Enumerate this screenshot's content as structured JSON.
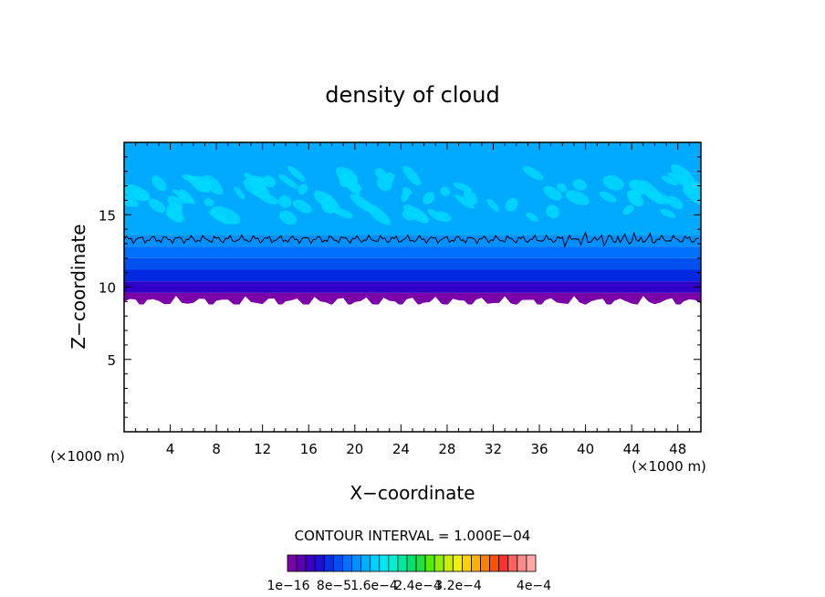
{
  "chart_data": {
    "type": "heatmap",
    "title": "density of cloud",
    "xlabel": "X−coordinate",
    "ylabel": "Z−coordinate",
    "x_unit_left": "(×1000 m)",
    "x_unit_right": "(×1000 m)",
    "xlim": [
      0,
      50
    ],
    "ylim": [
      0,
      20
    ],
    "x_ticks": [
      4,
      8,
      12,
      16,
      20,
      24,
      28,
      32,
      36,
      40,
      44,
      48
    ],
    "y_ticks": [
      5,
      10,
      15
    ],
    "contour_interval_label": "CONTOUR INTERVAL = 1.000E−04",
    "colorbar_labels": [
      "1e−16",
      "8e−5",
      "1.6e−4",
      "2.4e−4",
      "3.2e−4",
      "4e−4"
    ],
    "colorbar_colors": [
      "#7a00a8",
      "#5a00b0",
      "#3a00c0",
      "#1e10d0",
      "#0a30e0",
      "#0050f0",
      "#0070ff",
      "#0090ff",
      "#00b0ff",
      "#00d0ff",
      "#00e8f0",
      "#00f0d0",
      "#00e8a0",
      "#00e070",
      "#20e040",
      "#50f000",
      "#90f000",
      "#c8f000",
      "#f0f000",
      "#ffd000",
      "#ffb000",
      "#ff8000",
      "#ff5000",
      "#ff3030",
      "#ff6060",
      "#ff8a8a",
      "#ffa8a8"
    ],
    "layers": [
      {
        "z_bottom": 8.8,
        "z_top": 9.6,
        "color": "#7a00a8"
      },
      {
        "z_bottom": 9.6,
        "z_top": 10.4,
        "color": "#3000c8"
      },
      {
        "z_bottom": 10.4,
        "z_top": 11.2,
        "color": "#0028e0"
      },
      {
        "z_bottom": 11.2,
        "z_top": 12.0,
        "color": "#0050f0"
      },
      {
        "z_bottom": 12.0,
        "z_top": 12.8,
        "color": "#0070ff"
      },
      {
        "z_bottom": 12.8,
        "z_top": 13.6,
        "color": "#0090ff"
      },
      {
        "z_bottom": 13.6,
        "z_top": 20.0,
        "color": "#00aaff"
      }
    ],
    "contour_level_z": 13.3,
    "cloud_base_z": 9.0,
    "grid": false
  }
}
